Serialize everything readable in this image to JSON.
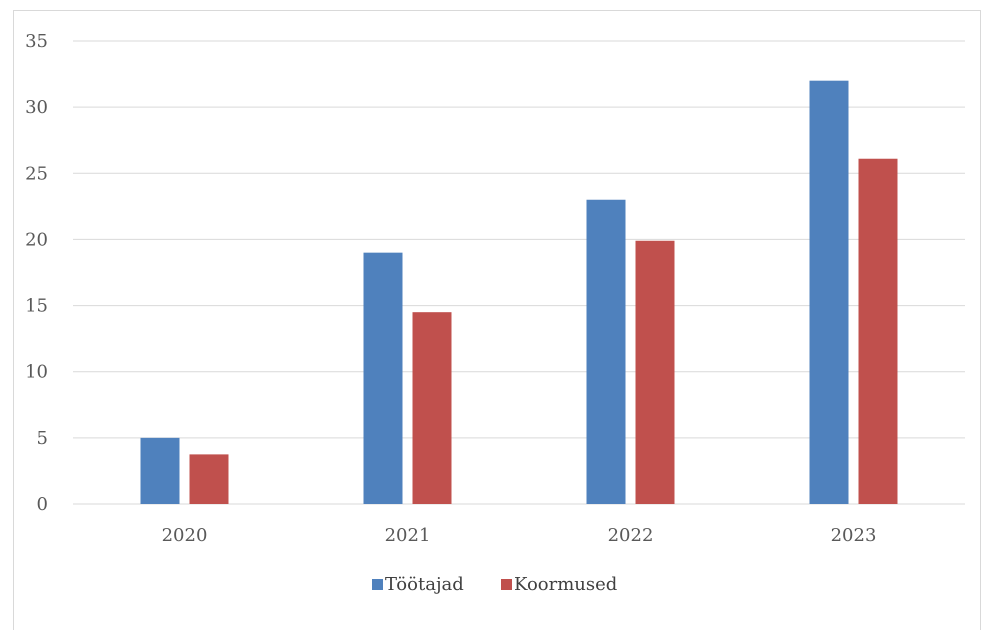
{
  "chart_data": {
    "type": "bar",
    "title": "",
    "xlabel": "",
    "ylabel": "",
    "categories": [
      "2020",
      "2021",
      "2022",
      "2023"
    ],
    "series": [
      {
        "name": "Töötajad",
        "color": "#4f81bd",
        "values": [
          5,
          19,
          23,
          32
        ]
      },
      {
        "name": "Koormused",
        "color": "#c0504d",
        "values": [
          3.75,
          14.5,
          19.9,
          26.1
        ]
      }
    ],
    "ylim": [
      0,
      35
    ],
    "yticks": [
      0,
      5,
      10,
      15,
      20,
      25,
      30,
      35
    ],
    "grid": true,
    "legend_position": "bottom"
  }
}
